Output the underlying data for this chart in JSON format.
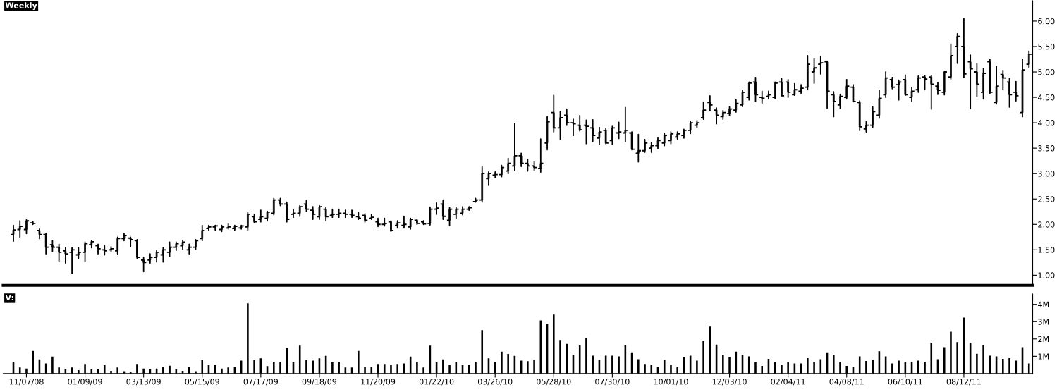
{
  "chart_data": [
    {
      "type": "candlestick",
      "title": "Weekly",
      "color": "#000000",
      "tick_labels": "y",
      "xlim": [
        "2008-10-13",
        "2011-10-25"
      ],
      "ylim": [
        0.8,
        6.4
      ],
      "yticks": [
        {
          "value": 1,
          "label": "1.00"
        },
        {
          "value": 1.5,
          "label": "1.50"
        },
        {
          "value": 2,
          "label": "2.00"
        },
        {
          "value": 2.5,
          "label": "2.50"
        },
        {
          "value": 3,
          "label": "3.00"
        },
        {
          "value": 3.5,
          "label": "3.50"
        },
        {
          "value": 4,
          "label": "4.00"
        },
        {
          "value": 4.5,
          "label": "4.50"
        },
        {
          "value": 5,
          "label": "5.00"
        },
        {
          "value": 5.5,
          "label": "5.50"
        },
        {
          "value": 6,
          "label": "6.00"
        }
      ],
      "x": [
        "2008-10-24",
        "2008-10-31",
        "2008-11-07",
        "2008-11-14",
        "2008-11-21",
        "2008-11-28",
        "2008-12-05",
        "2008-12-12",
        "2008-12-19",
        "2008-12-26",
        "2009-01-02",
        "2009-01-09",
        "2009-01-16",
        "2009-01-23",
        "2009-01-30",
        "2009-02-06",
        "2009-02-13",
        "2009-02-20",
        "2009-02-27",
        "2009-03-06",
        "2009-03-13",
        "2009-03-20",
        "2009-03-27",
        "2009-04-03",
        "2009-04-10",
        "2009-04-17",
        "2009-04-24",
        "2009-05-01",
        "2009-05-08",
        "2009-05-15",
        "2009-05-22",
        "2009-05-29",
        "2009-06-05",
        "2009-06-12",
        "2009-06-19",
        "2009-06-26",
        "2009-07-03",
        "2009-07-10",
        "2009-07-17",
        "2009-07-24",
        "2009-07-31",
        "2009-08-07",
        "2009-08-14",
        "2009-08-21",
        "2009-08-28",
        "2009-09-04",
        "2009-09-11",
        "2009-09-18",
        "2009-09-25",
        "2009-10-02",
        "2009-10-09",
        "2009-10-16",
        "2009-10-23",
        "2009-10-30",
        "2009-11-06",
        "2009-11-13",
        "2009-11-20",
        "2009-11-27",
        "2009-12-04",
        "2009-12-11",
        "2009-12-18",
        "2009-12-25",
        "2010-01-01",
        "2010-01-08",
        "2010-01-15",
        "2010-01-22",
        "2010-01-29",
        "2010-02-05",
        "2010-02-12",
        "2010-02-19",
        "2010-02-26",
        "2010-03-05",
        "2010-03-12",
        "2010-03-19",
        "2010-03-26",
        "2010-04-02",
        "2010-04-09",
        "2010-04-16",
        "2010-04-23",
        "2010-04-30",
        "2010-05-07",
        "2010-05-14",
        "2010-05-21",
        "2010-05-28",
        "2010-06-04",
        "2010-06-11",
        "2010-06-18",
        "2010-06-25",
        "2010-07-02",
        "2010-07-09",
        "2010-07-16",
        "2010-07-23",
        "2010-07-30",
        "2010-08-06",
        "2010-08-13",
        "2010-08-20",
        "2010-08-27",
        "2010-09-03",
        "2010-09-10",
        "2010-09-17",
        "2010-09-24",
        "2010-10-01",
        "2010-10-08",
        "2010-10-15",
        "2010-10-22",
        "2010-10-29",
        "2010-11-05",
        "2010-11-12",
        "2010-11-19",
        "2010-11-26",
        "2010-12-03",
        "2010-12-10",
        "2010-12-17",
        "2010-12-24",
        "2010-12-31",
        "2011-01-07",
        "2011-01-14",
        "2011-01-21",
        "2011-01-28",
        "2011-02-04",
        "2011-02-11",
        "2011-02-18",
        "2011-02-25",
        "2011-03-04",
        "2011-03-11",
        "2011-03-18",
        "2011-03-25",
        "2011-04-01",
        "2011-04-08",
        "2011-04-15",
        "2011-04-22",
        "2011-04-29",
        "2011-05-06",
        "2011-05-13",
        "2011-05-20",
        "2011-05-27",
        "2011-06-03",
        "2011-06-10",
        "2011-06-17",
        "2011-06-24",
        "2011-07-01",
        "2011-07-08",
        "2011-07-15",
        "2011-07-22",
        "2011-07-29",
        "2011-08-05",
        "2011-08-12",
        "2011-08-19",
        "2011-08-26",
        "2011-09-02",
        "2011-09-09",
        "2011-09-16",
        "2011-09-23",
        "2011-09-30",
        "2011-10-07",
        "2011-10-14",
        "2011-10-21"
      ],
      "ohlc": [
        [
          1.8,
          1.98,
          1.67,
          1.89
        ],
        [
          1.9,
          2.07,
          1.75,
          1.96
        ],
        [
          1.9,
          2.09,
          1.82,
          2.07
        ],
        [
          2.03,
          2.05,
          2.0,
          2.02
        ],
        [
          1.88,
          1.91,
          1.72,
          1.8
        ],
        [
          1.8,
          1.82,
          1.42,
          1.55
        ],
        [
          1.6,
          1.68,
          1.47,
          1.55
        ],
        [
          1.55,
          1.61,
          1.28,
          1.45
        ],
        [
          1.48,
          1.54,
          1.24,
          1.42
        ],
        [
          1.45,
          1.54,
          1.03,
          1.5
        ],
        [
          1.4,
          1.54,
          1.33,
          1.45
        ],
        [
          1.45,
          1.65,
          1.27,
          1.62
        ],
        [
          1.6,
          1.68,
          1.54,
          1.66
        ],
        [
          1.58,
          1.61,
          1.42,
          1.52
        ],
        [
          1.5,
          1.58,
          1.4,
          1.48
        ],
        [
          1.5,
          1.56,
          1.47,
          1.52
        ],
        [
          1.48,
          1.75,
          1.42,
          1.72
        ],
        [
          1.72,
          1.82,
          1.68,
          1.78
        ],
        [
          1.73,
          1.75,
          1.56,
          1.7
        ],
        [
          1.68,
          1.7,
          1.33,
          1.35
        ],
        [
          1.3,
          1.35,
          1.07,
          1.25
        ],
        [
          1.3,
          1.42,
          1.24,
          1.35
        ],
        [
          1.35,
          1.49,
          1.26,
          1.45
        ],
        [
          1.4,
          1.54,
          1.26,
          1.5
        ],
        [
          1.45,
          1.65,
          1.37,
          1.55
        ],
        [
          1.55,
          1.65,
          1.49,
          1.62
        ],
        [
          1.58,
          1.68,
          1.51,
          1.65
        ],
        [
          1.5,
          1.61,
          1.42,
          1.55
        ],
        [
          1.55,
          1.7,
          1.51,
          1.68
        ],
        [
          1.72,
          1.98,
          1.68,
          1.88
        ],
        [
          1.92,
          1.98,
          1.89,
          1.95
        ],
        [
          1.95,
          1.98,
          1.89,
          1.97
        ],
        [
          1.9,
          1.98,
          1.86,
          1.95
        ],
        [
          1.93,
          2.02,
          1.91,
          1.95
        ],
        [
          1.92,
          1.98,
          1.89,
          1.96
        ],
        [
          1.93,
          1.98,
          1.91,
          1.97
        ],
        [
          1.95,
          2.23,
          1.89,
          2.2
        ],
        [
          2.15,
          2.19,
          2.03,
          2.05
        ],
        [
          2.1,
          2.28,
          2.05,
          2.15
        ],
        [
          2.12,
          2.26,
          2.07,
          2.24
        ],
        [
          2.22,
          2.51,
          2.19,
          2.48
        ],
        [
          2.48,
          2.51,
          2.37,
          2.4
        ],
        [
          2.4,
          2.44,
          2.05,
          2.1
        ],
        [
          2.2,
          2.3,
          2.14,
          2.22
        ],
        [
          2.22,
          2.37,
          2.16,
          2.35
        ],
        [
          2.4,
          2.47,
          2.26,
          2.3
        ],
        [
          2.28,
          2.35,
          2.1,
          2.2
        ],
        [
          2.15,
          2.37,
          2.1,
          2.35
        ],
        [
          2.3,
          2.33,
          2.07,
          2.15
        ],
        [
          2.18,
          2.3,
          2.14,
          2.2
        ],
        [
          2.2,
          2.3,
          2.14,
          2.22
        ],
        [
          2.22,
          2.28,
          2.14,
          2.2
        ],
        [
          2.2,
          2.28,
          2.14,
          2.18
        ],
        [
          2.15,
          2.23,
          2.1,
          2.12
        ],
        [
          2.18,
          2.21,
          2.05,
          2.08
        ],
        [
          2.12,
          2.19,
          2.1,
          2.14
        ],
        [
          2.05,
          2.12,
          1.96,
          2.0
        ],
        [
          2.0,
          2.12,
          1.97,
          2.02
        ],
        [
          2.05,
          2.07,
          1.86,
          1.88
        ],
        [
          1.98,
          2.07,
          1.93,
          2.03
        ],
        [
          1.98,
          2.16,
          1.93,
          2.0
        ],
        [
          1.95,
          2.12,
          1.91,
          2.1
        ],
        [
          2.08,
          2.1,
          2.0,
          2.02
        ],
        [
          2.05,
          2.07,
          2.0,
          2.01
        ],
        [
          2.02,
          2.34,
          1.99,
          2.3
        ],
        [
          2.3,
          2.42,
          2.2,
          2.32
        ],
        [
          2.4,
          2.48,
          2.1,
          2.16
        ],
        [
          2.08,
          2.33,
          1.98,
          2.3
        ],
        [
          2.2,
          2.34,
          2.12,
          2.3
        ],
        [
          2.22,
          2.35,
          2.19,
          2.3
        ],
        [
          2.3,
          2.35,
          2.28,
          2.33
        ],
        [
          2.45,
          2.51,
          2.44,
          2.48
        ],
        [
          2.48,
          3.13,
          2.44,
          3.0
        ],
        [
          2.9,
          3.03,
          2.77,
          3.0
        ],
        [
          2.97,
          3.03,
          2.93,
          2.98
        ],
        [
          2.98,
          3.16,
          2.94,
          3.12
        ],
        [
          3.05,
          3.3,
          3.0,
          3.2
        ],
        [
          3.15,
          3.98,
          3.07,
          3.35
        ],
        [
          3.35,
          3.4,
          3.14,
          3.2
        ],
        [
          3.2,
          3.28,
          3.05,
          3.15
        ],
        [
          3.15,
          3.23,
          3.06,
          3.12
        ],
        [
          3.1,
          3.68,
          3.03,
          3.2
        ],
        [
          3.6,
          4.12,
          3.47,
          4.02
        ],
        [
          4.2,
          4.54,
          3.82,
          3.9
        ],
        [
          3.9,
          4.22,
          3.68,
          4.1
        ],
        [
          4.15,
          4.27,
          3.95,
          4.0
        ],
        [
          4.0,
          4.07,
          3.75,
          3.98
        ],
        [
          3.95,
          4.14,
          3.84,
          3.86
        ],
        [
          3.95,
          4.05,
          3.59,
          3.93
        ],
        [
          3.9,
          4.06,
          3.63,
          3.75
        ],
        [
          3.7,
          3.91,
          3.57,
          3.82
        ],
        [
          3.85,
          3.88,
          3.59,
          3.6
        ],
        [
          3.65,
          3.93,
          3.58,
          3.9
        ],
        [
          3.8,
          4.01,
          3.69,
          3.82
        ],
        [
          3.8,
          4.3,
          3.63,
          3.85
        ],
        [
          3.8,
          3.82,
          3.47,
          3.48
        ],
        [
          3.4,
          3.77,
          3.23,
          3.45
        ],
        [
          3.45,
          3.67,
          3.42,
          3.6
        ],
        [
          3.5,
          3.61,
          3.42,
          3.55
        ],
        [
          3.55,
          3.7,
          3.49,
          3.65
        ],
        [
          3.6,
          3.79,
          3.55,
          3.75
        ],
        [
          3.65,
          3.82,
          3.59,
          3.78
        ],
        [
          3.72,
          3.82,
          3.68,
          3.78
        ],
        [
          3.75,
          3.87,
          3.7,
          3.85
        ],
        [
          3.85,
          4.02,
          3.79,
          4.0
        ],
        [
          3.95,
          4.04,
          3.9,
          4.0
        ],
        [
          4.1,
          4.41,
          4.07,
          4.25
        ],
        [
          4.4,
          4.53,
          4.24,
          4.35
        ],
        [
          4.25,
          4.29,
          3.98,
          4.15
        ],
        [
          4.12,
          4.24,
          4.07,
          4.2
        ],
        [
          4.18,
          4.31,
          4.14,
          4.27
        ],
        [
          4.25,
          4.46,
          4.21,
          4.38
        ],
        [
          4.35,
          4.64,
          4.32,
          4.6
        ],
        [
          4.5,
          4.8,
          4.45,
          4.78
        ],
        [
          4.8,
          4.89,
          4.42,
          4.55
        ],
        [
          4.5,
          4.62,
          4.39,
          4.48
        ],
        [
          4.52,
          4.62,
          4.47,
          4.55
        ],
        [
          4.5,
          4.8,
          4.48,
          4.78
        ],
        [
          4.8,
          4.87,
          4.53,
          4.53
        ],
        [
          4.8,
          4.85,
          4.5,
          4.6
        ],
        [
          4.55,
          4.77,
          4.54,
          4.65
        ],
        [
          4.62,
          4.75,
          4.58,
          4.68
        ],
        [
          4.7,
          5.32,
          4.65,
          5.15
        ],
        [
          5.0,
          5.27,
          4.78,
          5.08
        ],
        [
          5.15,
          5.3,
          4.96,
          5.18
        ],
        [
          5.2,
          5.21,
          4.29,
          4.62
        ],
        [
          4.55,
          4.61,
          4.12,
          4.42
        ],
        [
          4.35,
          4.56,
          4.29,
          4.52
        ],
        [
          4.5,
          4.85,
          4.47,
          4.72
        ],
        [
          4.7,
          4.75,
          4.41,
          4.42
        ],
        [
          4.4,
          4.43,
          3.85,
          3.92
        ],
        [
          3.88,
          4.02,
          3.82,
          3.95
        ],
        [
          3.95,
          4.31,
          3.91,
          4.22
        ],
        [
          4.15,
          4.64,
          4.09,
          4.48
        ],
        [
          4.55,
          5.0,
          4.5,
          4.88
        ],
        [
          4.85,
          4.89,
          4.67,
          4.7
        ],
        [
          4.75,
          4.84,
          4.45,
          4.8
        ],
        [
          4.85,
          4.94,
          4.54,
          4.55
        ],
        [
          4.5,
          4.7,
          4.42,
          4.62
        ],
        [
          4.65,
          4.92,
          4.6,
          4.88
        ],
        [
          4.9,
          4.93,
          4.65,
          4.86
        ],
        [
          4.9,
          4.93,
          4.27,
          4.76
        ],
        [
          4.72,
          4.79,
          4.56,
          4.64
        ],
        [
          4.6,
          5.0,
          4.55,
          5.0
        ],
        [
          4.9,
          5.55,
          4.86,
          5.32
        ],
        [
          5.5,
          5.75,
          5.17,
          5.7
        ],
        [
          5.5,
          6.05,
          4.89,
          4.96
        ],
        [
          5.2,
          5.33,
          4.28,
          5.06
        ],
        [
          5.0,
          5.16,
          4.51,
          4.76
        ],
        [
          4.6,
          5.07,
          4.47,
          4.97
        ],
        [
          5.2,
          5.25,
          4.58,
          4.6
        ],
        [
          4.4,
          5.11,
          4.37,
          4.72
        ],
        [
          4.95,
          5.03,
          4.65,
          4.88
        ],
        [
          4.8,
          4.87,
          4.31,
          4.55
        ],
        [
          4.6,
          4.81,
          4.43,
          4.53
        ],
        [
          4.2,
          5.25,
          4.12,
          5.04
        ],
        [
          5.15,
          5.41,
          5.08,
          5.35
        ]
      ]
    },
    {
      "type": "bar",
      "title": "V:",
      "color": "#000000",
      "x": [
        "2008-10-24",
        "2008-10-31",
        "2008-11-07",
        "2008-11-14",
        "2008-11-21",
        "2008-11-28",
        "2008-12-05",
        "2008-12-12",
        "2008-12-19",
        "2008-12-26",
        "2009-01-02",
        "2009-01-09",
        "2009-01-16",
        "2009-01-23",
        "2009-01-30",
        "2009-02-06",
        "2009-02-13",
        "2009-02-20",
        "2009-02-27",
        "2009-03-06",
        "2009-03-13",
        "2009-03-20",
        "2009-03-27",
        "2009-04-03",
        "2009-04-10",
        "2009-04-17",
        "2009-04-24",
        "2009-05-01",
        "2009-05-08",
        "2009-05-15",
        "2009-05-22",
        "2009-05-29",
        "2009-06-05",
        "2009-06-12",
        "2009-06-19",
        "2009-06-26",
        "2009-07-03",
        "2009-07-10",
        "2009-07-17",
        "2009-07-24",
        "2009-07-31",
        "2009-08-07",
        "2009-08-14",
        "2009-08-21",
        "2009-08-28",
        "2009-09-04",
        "2009-09-11",
        "2009-09-18",
        "2009-09-25",
        "2009-10-02",
        "2009-10-09",
        "2009-10-16",
        "2009-10-23",
        "2009-10-30",
        "2009-11-06",
        "2009-11-13",
        "2009-11-20",
        "2009-11-27",
        "2009-12-04",
        "2009-12-11",
        "2009-12-18",
        "2009-12-25",
        "2010-01-01",
        "2010-01-08",
        "2010-01-15",
        "2010-01-22",
        "2010-01-29",
        "2010-02-05",
        "2010-02-12",
        "2010-02-19",
        "2010-02-26",
        "2010-03-05",
        "2010-03-12",
        "2010-03-19",
        "2010-03-26",
        "2010-04-02",
        "2010-04-09",
        "2010-04-16",
        "2010-04-23",
        "2010-04-30",
        "2010-05-07",
        "2010-05-14",
        "2010-05-21",
        "2010-05-28",
        "2010-06-04",
        "2010-06-11",
        "2010-06-18",
        "2010-06-25",
        "2010-07-02",
        "2010-07-09",
        "2010-07-16",
        "2010-07-23",
        "2010-07-30",
        "2010-08-06",
        "2010-08-13",
        "2010-08-20",
        "2010-08-27",
        "2010-09-03",
        "2010-09-10",
        "2010-09-17",
        "2010-09-24",
        "2010-10-01",
        "2010-10-08",
        "2010-10-15",
        "2010-10-22",
        "2010-10-29",
        "2010-11-05",
        "2010-11-12",
        "2010-11-19",
        "2010-11-26",
        "2010-12-03",
        "2010-12-10",
        "2010-12-17",
        "2010-12-24",
        "2010-12-31",
        "2011-01-07",
        "2011-01-14",
        "2011-01-21",
        "2011-01-28",
        "2011-02-04",
        "2011-02-11",
        "2011-02-18",
        "2011-02-25",
        "2011-03-04",
        "2011-03-11",
        "2011-03-18",
        "2011-03-25",
        "2011-04-01",
        "2011-04-08",
        "2011-04-15",
        "2011-04-22",
        "2011-04-29",
        "2011-05-06",
        "2011-05-13",
        "2011-05-20",
        "2011-05-27",
        "2011-06-03",
        "2011-06-10",
        "2011-06-17",
        "2011-06-24",
        "2011-07-01",
        "2011-07-08",
        "2011-07-15",
        "2011-07-22",
        "2011-07-29",
        "2011-08-05",
        "2011-08-12",
        "2011-08-19",
        "2011-08-26",
        "2011-09-02",
        "2011-09-09",
        "2011-09-16",
        "2011-09-23",
        "2011-09-30",
        "2011-10-07",
        "2011-10-14",
        "2011-10-21"
      ],
      "xlim": [
        "2008-10-13",
        "2011-10-25"
      ],
      "xticks": [
        {
          "value": "2008-11-07",
          "label": "11/07/08"
        },
        {
          "value": "2009-01-09",
          "label": "01/09/09"
        },
        {
          "value": "2009-03-13",
          "label": "03/13/09"
        },
        {
          "value": "2009-05-15",
          "label": "05/15/09"
        },
        {
          "value": "2009-07-17",
          "label": "07/17/09"
        },
        {
          "value": "2009-09-18",
          "label": "09/18/09"
        },
        {
          "value": "2009-11-20",
          "label": "11/20/09"
        },
        {
          "value": "2010-01-22",
          "label": "01/22/10"
        },
        {
          "value": "2010-03-26",
          "label": "03/26/10"
        },
        {
          "value": "2010-05-28",
          "label": "05/28/10"
        },
        {
          "value": "2010-07-30",
          "label": "07/30/10"
        },
        {
          "value": "2010-10-01",
          "label": "10/01/10"
        },
        {
          "value": "2010-12-03",
          "label": "12/03/10"
        },
        {
          "value": "2011-02-04",
          "label": "02/04/11"
        },
        {
          "value": "2011-04-08",
          "label": "04/08/11"
        },
        {
          "value": "2011-06-10",
          "label": "06/10/11"
        },
        {
          "value": "2011-08-12",
          "label": "08/12/11"
        }
      ],
      "ylim": [
        0,
        4.6
      ],
      "yticks": [
        {
          "value": 1,
          "label": "1M"
        },
        {
          "value": 2,
          "label": "2M"
        },
        {
          "value": 3,
          "label": "3M"
        },
        {
          "value": 4,
          "label": "4M"
        }
      ],
      "values": [
        0.69,
        0.35,
        0.29,
        1.31,
        0.82,
        0.59,
        0.98,
        0.35,
        0.25,
        0.35,
        0.2,
        0.55,
        0.24,
        0.24,
        0.49,
        0.16,
        0.35,
        0.14,
        0.1,
        0.55,
        0.29,
        0.25,
        0.29,
        0.39,
        0.45,
        0.25,
        0.16,
        0.39,
        0.14,
        0.78,
        0.49,
        0.49,
        0.29,
        0.35,
        0.39,
        0.75,
        4.06,
        0.78,
        0.88,
        0.43,
        0.69,
        0.65,
        1.47,
        0.69,
        1.61,
        0.78,
        0.75,
        0.88,
        1.02,
        0.69,
        0.69,
        0.35,
        0.35,
        1.31,
        0.39,
        0.39,
        0.55,
        0.55,
        0.49,
        0.55,
        0.59,
        0.98,
        0.69,
        0.35,
        1.61,
        0.65,
        0.82,
        0.49,
        0.69,
        0.49,
        0.49,
        0.65,
        2.51,
        0.88,
        0.65,
        1.27,
        1.14,
        1.02,
        0.75,
        0.72,
        0.79,
        3.07,
        2.87,
        3.41,
        1.94,
        1.72,
        1.09,
        1.62,
        2.04,
        1.03,
        0.79,
        1.03,
        1.03,
        0.99,
        1.62,
        1.23,
        0.83,
        0.55,
        0.5,
        0.4,
        0.79,
        0.5,
        0.36,
        0.95,
        1.03,
        0.75,
        1.88,
        2.71,
        1.68,
        1.09,
        0.95,
        1.27,
        1.09,
        0.99,
        0.67,
        0.44,
        0.85,
        0.65,
        0.5,
        0.65,
        0.59,
        0.59,
        0.89,
        0.65,
        0.83,
        1.23,
        1.09,
        0.69,
        0.44,
        0.4,
        0.99,
        0.73,
        0.79,
        1.29,
        0.99,
        0.59,
        0.75,
        0.65,
        0.69,
        0.75,
        0.69,
        1.78,
        0.83,
        1.52,
        2.42,
        1.82,
        3.23,
        1.78,
        1.15,
        1.62,
        1.03,
        0.99,
        0.85,
        0.89,
        0.75,
        1.52,
        0.59
      ]
    }
  ]
}
